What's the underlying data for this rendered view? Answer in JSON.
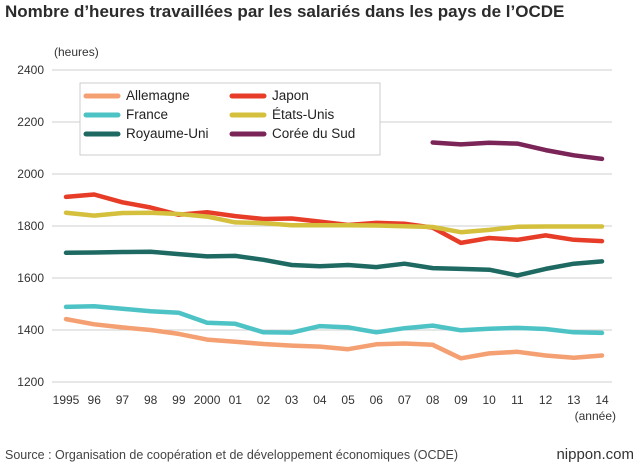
{
  "title": "Nombre d’heures travaillées par les salariés dans les pays de l’OCDE",
  "source": "Source : Organisation de coopération et de développement économiques (OCDE)",
  "brand": "nippon.com",
  "chart_data": {
    "type": "line",
    "ylabel": "(heures)",
    "xlabel": "(année)",
    "ylim": [
      1200,
      2400
    ],
    "yticks": [
      1200,
      1400,
      1600,
      1800,
      2000,
      2200,
      2400
    ],
    "grid": "horizontal",
    "legend_position": "top-left",
    "x": [
      "1995",
      "96",
      "97",
      "98",
      "99",
      "2000",
      "01",
      "02",
      "03",
      "04",
      "05",
      "06",
      "07",
      "08",
      "09",
      "10",
      "11",
      "12",
      "13",
      "14"
    ],
    "series": [
      {
        "name": "Allemagne",
        "color": "#f4a072",
        "values": [
          1442,
          1422,
          1410,
          1400,
          1385,
          1363,
          1355,
          1346,
          1340,
          1336,
          1326,
          1345,
          1348,
          1343,
          1291,
          1310,
          1316,
          1302,
          1293,
          1302
        ]
      },
      {
        "name": "Japon",
        "color": "#e63c28",
        "values": [
          1912,
          1921,
          1891,
          1871,
          1843,
          1853,
          1838,
          1827,
          1829,
          1817,
          1804,
          1812,
          1809,
          1794,
          1735,
          1754,
          1747,
          1764,
          1747,
          1742
        ]
      },
      {
        "name": "France",
        "color": "#4ec3c6",
        "values": [
          1489,
          1491,
          1482,
          1472,
          1466,
          1428,
          1424,
          1391,
          1390,
          1415,
          1410,
          1391,
          1407,
          1417,
          1399,
          1405,
          1408,
          1404,
          1391,
          1389
        ]
      },
      {
        "name": "États-Unis",
        "color": "#d4c03c",
        "values": [
          1851,
          1840,
          1850,
          1851,
          1846,
          1836,
          1814,
          1811,
          1803,
          1803,
          1803,
          1802,
          1799,
          1796,
          1776,
          1785,
          1797,
          1798,
          1798,
          1798
        ]
      },
      {
        "name": "Royaume-Uni",
        "color": "#1e6a63",
        "values": [
          1697,
          1698,
          1700,
          1701,
          1692,
          1683,
          1685,
          1670,
          1650,
          1645,
          1650,
          1642,
          1655,
          1638,
          1635,
          1632,
          1610,
          1635,
          1655,
          1664
        ]
      },
      {
        "name": "Corée du Sud",
        "color": "#7a2458",
        "values": [
          null,
          null,
          null,
          null,
          null,
          null,
          null,
          null,
          null,
          null,
          null,
          null,
          null,
          2121,
          2114,
          2120,
          2117,
          2092,
          2072,
          2058
        ]
      }
    ]
  }
}
